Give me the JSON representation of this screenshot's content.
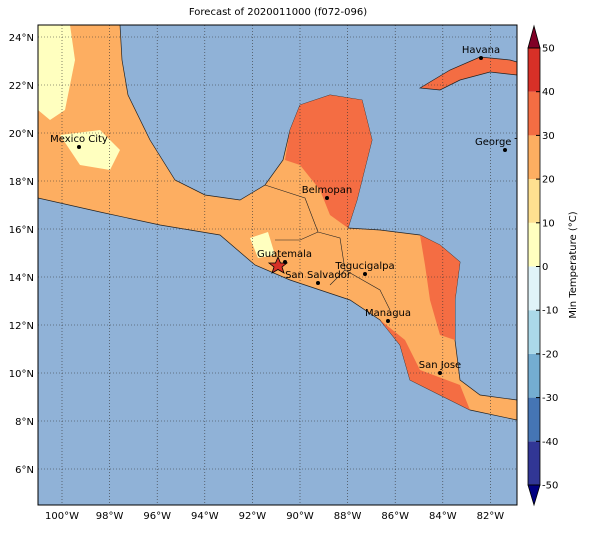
{
  "title": "Forecast of 2020011000 (f072-096)",
  "map": {
    "lat_labels": [
      "24°N",
      "22°N",
      "20°N",
      "18°N",
      "16°N",
      "14°N",
      "12°N",
      "10°N",
      "8°N",
      "6°N"
    ],
    "lon_labels": [
      "100°W",
      "98°W",
      "96°W",
      "94°W",
      "92°W",
      "90°W",
      "88°W",
      "86°W",
      "84°W",
      "82°W"
    ],
    "cities": [
      "Havana",
      "Mexico City",
      "George Town",
      "Belmopan",
      "Guatemala",
      "San Salvador",
      "Tegucigalpa",
      "Managua",
      "San Jose"
    ]
  },
  "colorbar": {
    "label": "Min Temperature (°C)",
    "lim": [
      -50,
      50
    ],
    "ticks": [
      50,
      40,
      30,
      20,
      10,
      0,
      -10,
      -20,
      -30,
      -40,
      -50
    ],
    "colors": [
      "#313695",
      "#4575b4",
      "#74add1",
      "#abd9e9",
      "#e0f3f8",
      "#ffffbf",
      "#fee090",
      "#fdae61",
      "#f46d43",
      "#d73027"
    ]
  }
}
